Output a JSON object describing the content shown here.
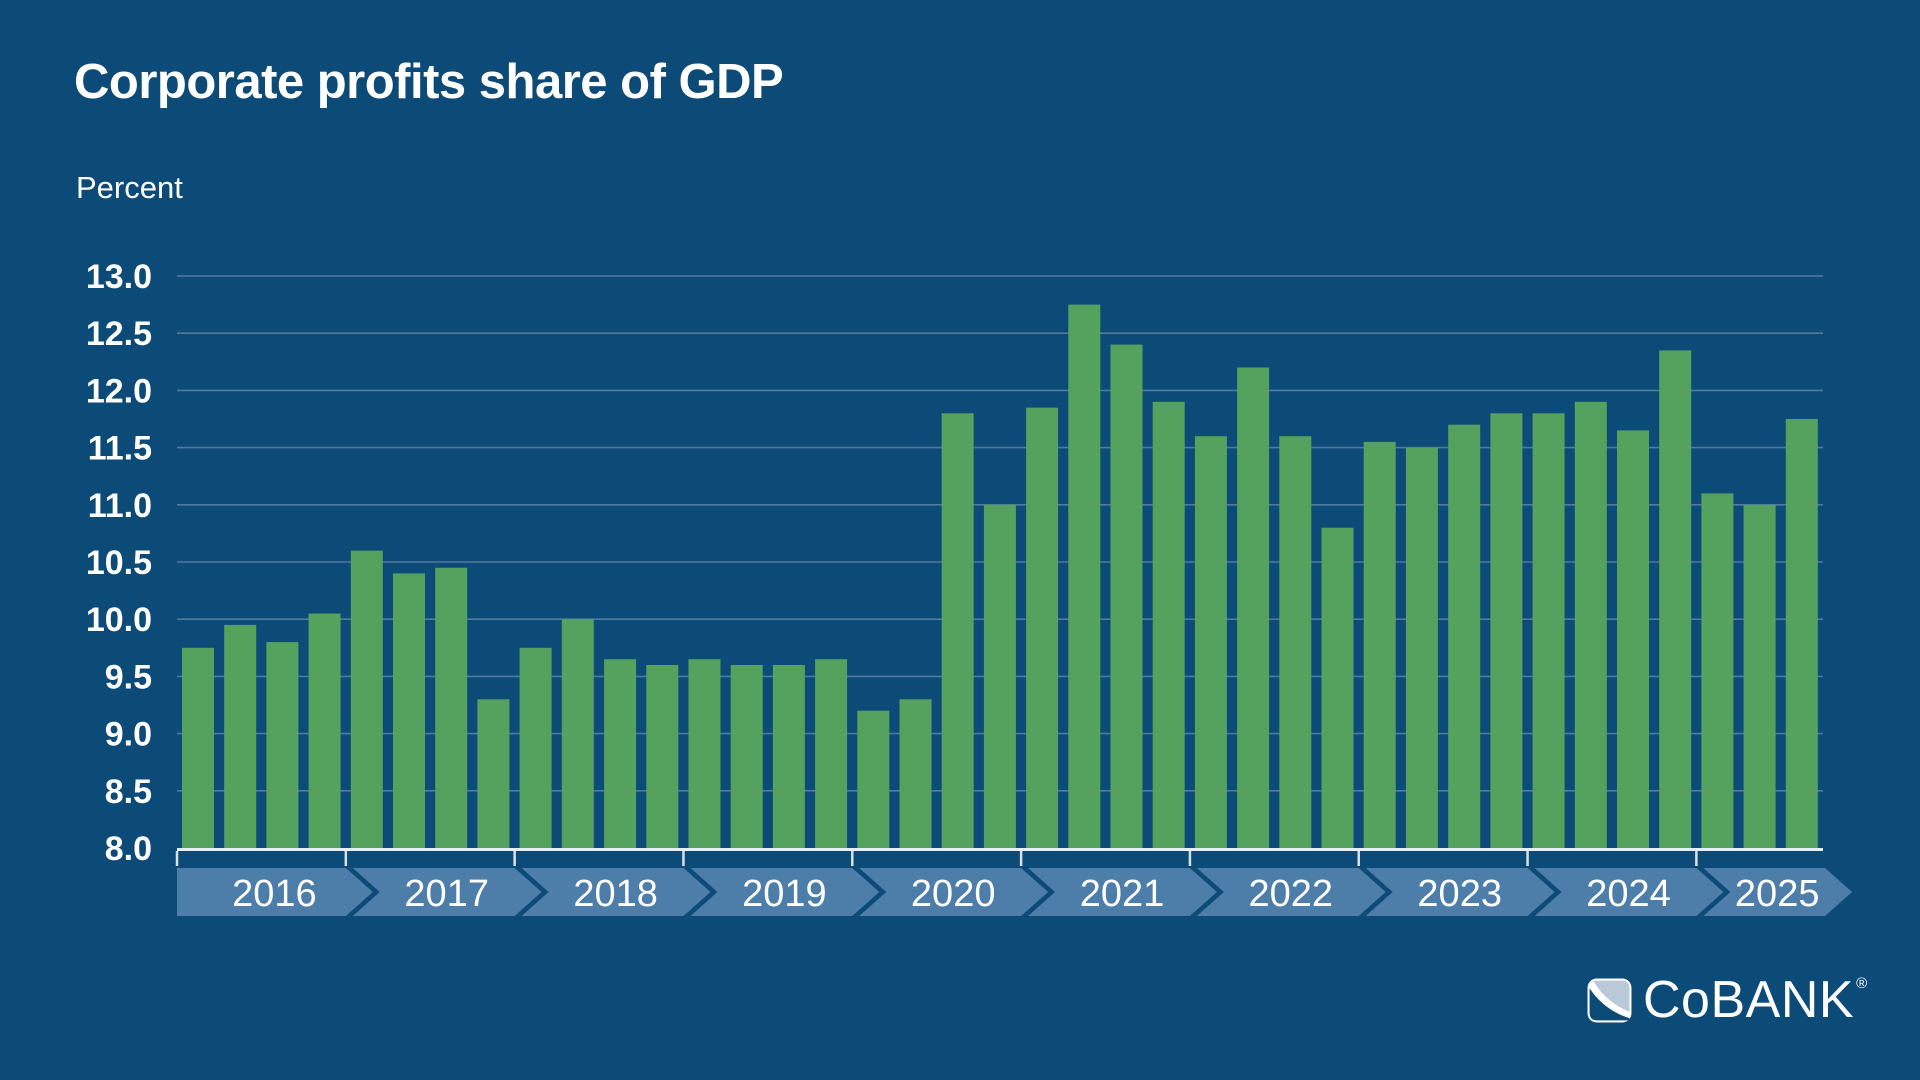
{
  "header": {
    "title": "Corporate profits share of GDP",
    "unit_label": "Percent"
  },
  "logo": {
    "brand": "CoBANK",
    "registered": "®"
  },
  "chart_data": {
    "type": "bar",
    "title": "Corporate profits share of GDP",
    "xlabel": "",
    "ylabel": "Percent",
    "ylim": [
      8.0,
      13.0
    ],
    "ytick_step": 0.5,
    "ytick_format_decimals": 1,
    "grid": true,
    "legend_position": "none",
    "frequency": "quarterly",
    "categories": [
      "2016",
      "2017",
      "2018",
      "2019",
      "2020",
      "2021",
      "2022",
      "2023",
      "2024",
      "2025"
    ],
    "years": [
      {
        "label": "2016",
        "values": [
          9.75,
          9.95,
          9.8,
          10.05
        ]
      },
      {
        "label": "2017",
        "values": [
          10.6,
          10.4,
          10.45,
          9.3
        ]
      },
      {
        "label": "2018",
        "values": [
          9.75,
          10.0,
          9.65,
          9.6
        ]
      },
      {
        "label": "2019",
        "values": [
          9.65,
          9.6,
          9.6,
          9.65
        ]
      },
      {
        "label": "2020",
        "values": [
          9.2,
          9.3,
          11.8,
          11.0
        ]
      },
      {
        "label": "2021",
        "values": [
          11.85,
          12.75,
          12.4,
          11.9
        ]
      },
      {
        "label": "2022",
        "values": [
          11.6,
          12.2,
          11.6,
          10.8
        ]
      },
      {
        "label": "2023",
        "values": [
          11.55,
          11.5,
          11.7,
          11.8
        ]
      },
      {
        "label": "2024",
        "values": [
          11.8,
          11.9,
          11.65,
          12.35
        ]
      },
      {
        "label": "2025",
        "values": [
          11.1,
          11.0,
          11.75
        ]
      }
    ],
    "colors": {
      "background": "#0c4a77",
      "bar": "#55a25e",
      "gridline": "#4f7b9f",
      "axis_line": "#e9eef3",
      "axis_tick": "#d7e2ea",
      "year_band": "#4d7ea9",
      "text": "#ffffff",
      "logo_light": "#b9c9d7"
    }
  }
}
